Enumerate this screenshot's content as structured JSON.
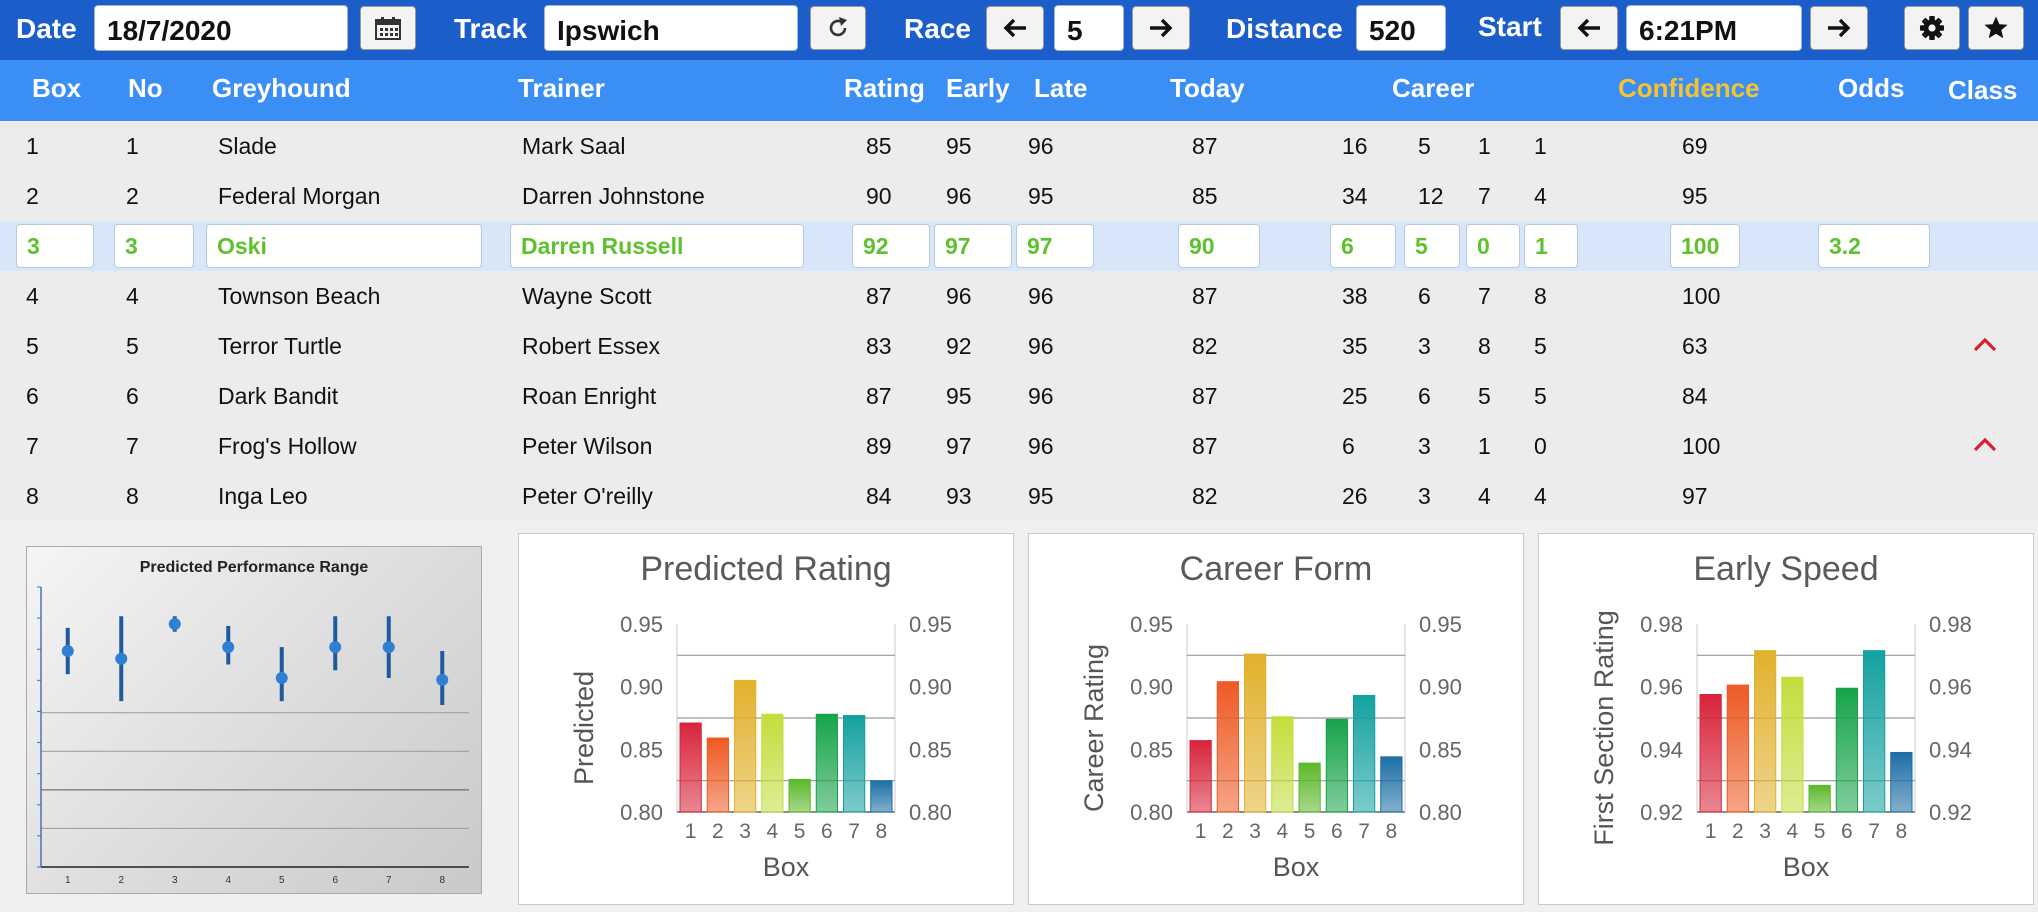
{
  "toolbar": {
    "date_label": "Date",
    "date_value": "18/7/2020",
    "track_label": "Track",
    "track_value": "Ipswich",
    "race_label": "Race",
    "race_value": "5",
    "distance_label": "Distance",
    "distance_value": "520",
    "start_label": "Start",
    "start_value": "6:21PM",
    "icons": [
      "calendar-icon",
      "refresh-icon",
      "arrow-left-icon",
      "arrow-right-icon",
      "gear-icon",
      "star-icon"
    ]
  },
  "table": {
    "headers": {
      "box": "Box",
      "no": "No",
      "greyhound": "Greyhound",
      "trainer": "Trainer",
      "rating": "Rating",
      "early": "Early",
      "late": "Late",
      "today": "Today",
      "career": "Career",
      "confidence": "Confidence",
      "odds": "Odds",
      "class": "Class"
    },
    "rows": [
      {
        "box": "1",
        "no": "1",
        "greyhound": "Slade",
        "trainer": "Mark Saal",
        "rating": "85",
        "early": "95",
        "late": "96",
        "today": "87",
        "c1": "16",
        "c2": "5",
        "c3": "1",
        "c4": "1",
        "confidence": "69",
        "odds": "",
        "class_up": false
      },
      {
        "box": "2",
        "no": "2",
        "greyhound": "Federal Morgan",
        "trainer": "Darren Johnstone",
        "rating": "90",
        "early": "96",
        "late": "95",
        "today": "85",
        "c1": "34",
        "c2": "12",
        "c3": "7",
        "c4": "4",
        "confidence": "95",
        "odds": "",
        "class_up": false
      },
      {
        "box": "3",
        "no": "3",
        "greyhound": "Oski",
        "trainer": "Darren Russell",
        "rating": "92",
        "early": "97",
        "late": "97",
        "today": "90",
        "c1": "6",
        "c2": "5",
        "c3": "0",
        "c4": "1",
        "confidence": "100",
        "odds": "3.2",
        "class_up": false
      },
      {
        "box": "4",
        "no": "4",
        "greyhound": "Townson Beach",
        "trainer": "Wayne Scott",
        "rating": "87",
        "early": "96",
        "late": "96",
        "today": "87",
        "c1": "38",
        "c2": "6",
        "c3": "7",
        "c4": "8",
        "confidence": "100",
        "odds": "",
        "class_up": false
      },
      {
        "box": "5",
        "no": "5",
        "greyhound": "Terror Turtle",
        "trainer": "Robert Essex",
        "rating": "83",
        "early": "92",
        "late": "96",
        "today": "82",
        "c1": "35",
        "c2": "3",
        "c3": "8",
        "c4": "5",
        "confidence": "63",
        "odds": "",
        "class_up": true
      },
      {
        "box": "6",
        "no": "6",
        "greyhound": "Dark Bandit",
        "trainer": "Roan Enright",
        "rating": "87",
        "early": "95",
        "late": "96",
        "today": "87",
        "c1": "25",
        "c2": "6",
        "c3": "5",
        "c4": "5",
        "confidence": "84",
        "odds": "",
        "class_up": false
      },
      {
        "box": "7",
        "no": "7",
        "greyhound": "Frog's Hollow",
        "trainer": "Peter Wilson",
        "rating": "89",
        "early": "97",
        "late": "96",
        "today": "87",
        "c1": "6",
        "c2": "3",
        "c3": "1",
        "c4": "0",
        "confidence": "100",
        "odds": "",
        "class_up": true
      },
      {
        "box": "8",
        "no": "8",
        "greyhound": "Inga Leo",
        "trainer": "Peter O'reilly",
        "rating": "84",
        "early": "93",
        "late": "95",
        "today": "82",
        "c1": "26",
        "c2": "3",
        "c3": "4",
        "c4": "4",
        "confidence": "97",
        "odds": "",
        "class_up": false
      }
    ],
    "selected_row": 2,
    "selected_text_color": "#5fc12e",
    "confidence_header_color": "#f4c430",
    "class_up_color": "#d9202a"
  },
  "chart_data": [
    {
      "type": "range",
      "title": "Predicted Performance Range",
      "categories": [
        "1",
        "2",
        "3",
        "4",
        "5",
        "6",
        "7",
        "8"
      ],
      "series": [
        {
          "values": [
            0.912,
            0.908,
            0.926,
            0.914,
            0.898,
            0.914,
            0.914,
            0.897
          ],
          "low": [
            0.9,
            0.886,
            0.922,
            0.905,
            0.886,
            0.902,
            0.898,
            0.884
          ],
          "high": [
            0.924,
            0.93,
            0.93,
            0.925,
            0.914,
            0.93,
            0.93,
            0.912
          ]
        }
      ],
      "ylim": [
        0.8,
        0.94
      ]
    },
    {
      "type": "bar",
      "title": "Predicted Rating",
      "xlabel": "Box",
      "ylabel": "Predicted",
      "categories": [
        "1",
        "2",
        "3",
        "4",
        "5",
        "6",
        "7",
        "8"
      ],
      "values": [
        0.871,
        0.859,
        0.905,
        0.878,
        0.826,
        0.878,
        0.877,
        0.825
      ],
      "ylim": [
        0.8,
        0.95
      ],
      "yticks": [
        "0.95",
        "0.90",
        "0.85",
        "0.80"
      ],
      "yticks_right": [
        "0.95",
        "0.90",
        "0.85",
        "0.80"
      ],
      "gridlines": [
        0.925,
        0.875,
        0.825
      ]
    },
    {
      "type": "bar",
      "title": "Career Form",
      "xlabel": "Box",
      "ylabel": "Career Rating",
      "categories": [
        "1",
        "2",
        "3",
        "4",
        "5",
        "6",
        "7",
        "8"
      ],
      "values": [
        0.857,
        0.904,
        0.926,
        0.876,
        0.839,
        0.874,
        0.893,
        0.844
      ],
      "ylim": [
        0.8,
        0.95
      ],
      "yticks": [
        "0.95",
        "0.90",
        "0.85",
        "0.80"
      ],
      "yticks_right": [
        "0.95",
        "0.90",
        "0.85",
        "0.80"
      ],
      "gridlines": [
        0.925,
        0.875,
        0.825
      ]
    },
    {
      "type": "bar",
      "title": "Early Speed",
      "xlabel": "Box",
      "ylabel": "First Section Rating",
      "categories": [
        "1",
        "2",
        "3",
        "4",
        "5",
        "6",
        "7",
        "8"
      ],
      "values": [
        0.9575,
        0.9605,
        0.9715,
        0.963,
        0.9285,
        0.9595,
        0.9715,
        0.939
      ],
      "ylim": [
        0.92,
        0.98
      ],
      "yticks": [
        "0.98",
        "0.96",
        "0.94",
        "0.92"
      ],
      "yticks_right": [
        "0.98",
        "0.96",
        "0.94",
        "0.92"
      ],
      "gridlines": [
        0.97,
        0.95,
        0.93
      ]
    }
  ],
  "bar_colors": [
    "#d8243a",
    "#ee5a24",
    "#e1b12c",
    "#c4dd3c",
    "#5cb82a",
    "#17a34a",
    "#13a1a0",
    "#1d6fa5"
  ]
}
